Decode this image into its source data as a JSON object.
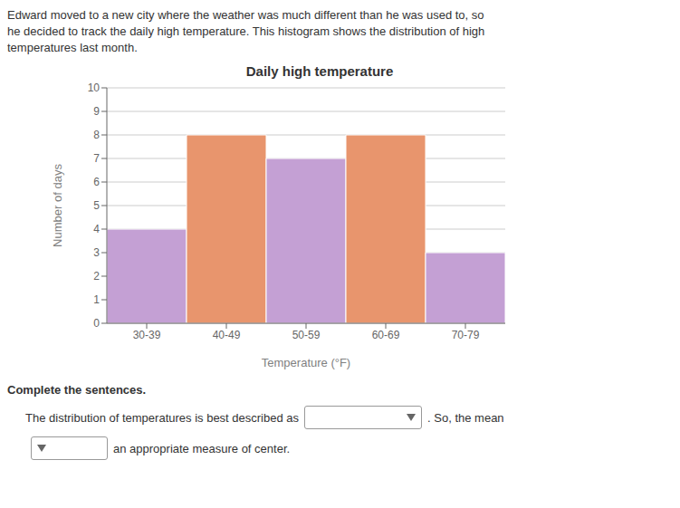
{
  "chart_data": {
    "type": "bar",
    "title": "Daily high temperature",
    "xlabel": "Temperature (°F)",
    "ylabel": "Number of days",
    "categories": [
      "30-39",
      "40-49",
      "50-59",
      "60-69",
      "70-79"
    ],
    "values": [
      4,
      8,
      7,
      8,
      3
    ],
    "colors": [
      "#c4a0d4",
      "#e8956d",
      "#c4a0d4",
      "#e8956d",
      "#c4a0d4"
    ],
    "ylim": [
      0,
      10
    ],
    "yticks": [
      0,
      1,
      2,
      3,
      4,
      5,
      6,
      7,
      8,
      9,
      10
    ],
    "grid": true,
    "annotations": [
      "Edward moved to a new city where the weather was much different than he was used to, so",
      "he decided to track the daily high temperature. This histogram shows the distribution of high",
      "temperatures last month.",
      "Complete the sentences.",
      "The distribution of temperatures is best described as",
      ". So, the mean",
      "an appropriate measure of center."
    ]
  }
}
